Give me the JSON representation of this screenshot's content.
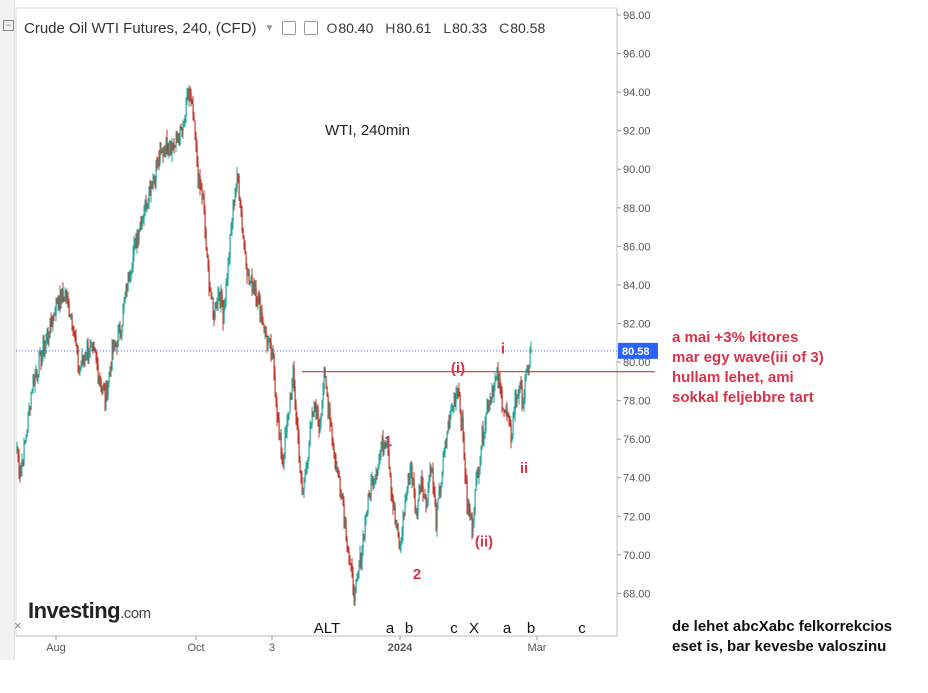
{
  "header": {
    "symbol_title": "Crude Oil WTI Futures, 240, (CFD)",
    "open_label": "O",
    "open": "80.40",
    "high_label": "H",
    "high": "80.61",
    "low_label": "L",
    "low": "80.33",
    "close_label": "C",
    "close": "80.58"
  },
  "chart_data": {
    "type": "candlestick",
    "title": "WTI, 240min",
    "ylim": [
      67.0,
      98.0
    ],
    "y_ticks": [
      "98.00",
      "96.00",
      "94.00",
      "92.00",
      "90.00",
      "88.00",
      "86.00",
      "84.00",
      "82.00",
      "80.00",
      "78.00",
      "76.00",
      "74.00",
      "72.00",
      "70.00",
      "68.00"
    ],
    "x_tick_labels": [
      "Aug",
      "Oct",
      "3",
      "2024",
      "Mar"
    ],
    "last_price": "80.58",
    "resistance_level": 79.5,
    "price_path": [
      [
        0,
        75.5
      ],
      [
        3,
        74.3
      ],
      [
        8,
        75.8
      ],
      [
        15,
        78.8
      ],
      [
        25,
        80.4
      ],
      [
        32,
        81.6
      ],
      [
        40,
        83.2
      ],
      [
        48,
        83.5
      ],
      [
        55,
        82.3
      ],
      [
        62,
        79.6
      ],
      [
        70,
        80.6
      ],
      [
        78,
        80.3
      ],
      [
        88,
        78.1
      ],
      [
        96,
        80.6
      ],
      [
        103,
        81.6
      ],
      [
        112,
        84.6
      ],
      [
        122,
        87.0
      ],
      [
        132,
        88.9
      ],
      [
        142,
        90.5
      ],
      [
        150,
        91.4
      ],
      [
        158,
        91.2
      ],
      [
        166,
        92.1
      ],
      [
        172,
        94.1
      ],
      [
        176,
        92.6
      ],
      [
        182,
        89.2
      ],
      [
        186,
        88.4
      ],
      [
        190,
        85.2
      ],
      [
        196,
        82.4
      ],
      [
        202,
        83.8
      ],
      [
        206,
        82.5
      ],
      [
        212,
        85.6
      ],
      [
        217,
        88.6
      ],
      [
        221,
        89.6
      ],
      [
        226,
        86.6
      ],
      [
        232,
        84.1
      ],
      [
        238,
        84.0
      ],
      [
        244,
        82.6
      ],
      [
        250,
        81.1
      ],
      [
        256,
        80.1
      ],
      [
        262,
        76.2
      ],
      [
        266,
        74.9
      ],
      [
        272,
        77.6
      ],
      [
        276,
        79.3
      ],
      [
        281,
        76.0
      ],
      [
        285,
        72.9
      ],
      [
        292,
        75.8
      ],
      [
        298,
        77.9
      ],
      [
        302,
        76.6
      ],
      [
        307,
        79.2
      ],
      [
        312,
        77.6
      ],
      [
        318,
        74.8
      ],
      [
        324,
        73.6
      ],
      [
        328,
        71.7
      ],
      [
        333,
        69.4
      ],
      [
        338,
        67.7
      ],
      [
        343,
        69.7
      ],
      [
        348,
        71.8
      ],
      [
        354,
        73.6
      ],
      [
        360,
        74.7
      ],
      [
        365,
        75.6
      ],
      [
        370,
        76.2
      ],
      [
        374,
        73.6
      ],
      [
        378,
        71.8
      ],
      [
        383,
        70.3
      ],
      [
        388,
        72.8
      ],
      [
        394,
        74.7
      ],
      [
        399,
        72.1
      ],
      [
        404,
        74.1
      ],
      [
        409,
        72.6
      ],
      [
        414,
        74.8
      ],
      [
        419,
        71.8
      ],
      [
        424,
        73.9
      ],
      [
        430,
        76.4
      ],
      [
        436,
        77.9
      ],
      [
        441,
        78.9
      ],
      [
        446,
        76.1
      ],
      [
        450,
        72.6
      ],
      [
        455,
        71.6
      ],
      [
        460,
        74.1
      ],
      [
        465,
        76.1
      ],
      [
        470,
        77.6
      ],
      [
        475,
        78.6
      ],
      [
        480,
        79.2
      ],
      [
        485,
        78.1
      ],
      [
        490,
        77.1
      ],
      [
        494,
        76.2
      ],
      [
        498,
        77.9
      ],
      [
        502,
        78.6
      ],
      [
        506,
        78.0
      ],
      [
        510,
        79.4
      ],
      [
        514,
        80.6
      ]
    ],
    "annotations": [
      {
        "text": "1",
        "price": 75.9,
        "color": "red"
      },
      {
        "text": "2",
        "price": 69.0,
        "color": "red"
      },
      {
        "text": "(i)",
        "price": 79.7,
        "color": "red"
      },
      {
        "text": "(ii)",
        "price": 70.7,
        "color": "red"
      },
      {
        "text": "i",
        "price": 80.7,
        "color": "red"
      },
      {
        "text": "ii",
        "price": 74.5,
        "color": "red"
      }
    ],
    "bottom_labels": [
      "ALT",
      "a",
      "b",
      "c",
      "X",
      "a",
      "b",
      "c"
    ],
    "legend": "none",
    "grid": false
  },
  "notes": {
    "bullish_lines": [
      "a mai +3% kitores",
      "mar egy wave(iii of 3)",
      "hullam lehet, ami",
      "sokkal feljebbre tart"
    ],
    "bearish_lines": [
      "de lehet abcXabc felkorrekcios",
      "eset is, bar kevesbe valoszinu"
    ]
  },
  "branding": {
    "logo_main": "Investing",
    "logo_suffix": ".com",
    "close_icon": "×"
  },
  "colors": {
    "up": "#26a69a",
    "down": "#c0392b",
    "annotation": "#d9324a",
    "last_price_bg": "#2962ff",
    "resistance": "#c0392b"
  }
}
